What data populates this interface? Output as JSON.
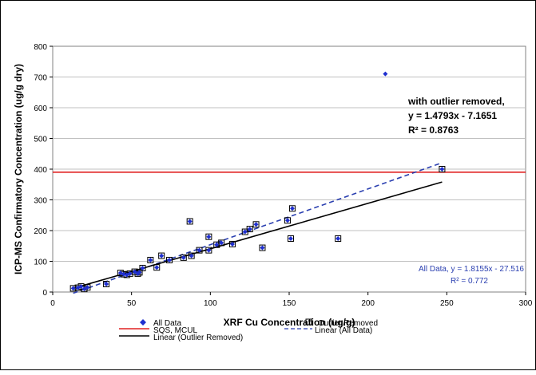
{
  "chart_data": {
    "type": "scatter",
    "title": "",
    "xlabel": "XRF Cu Concentration (ug/g)",
    "ylabel": "ICP-MS Confirmatory Concentration (ug/g dry)",
    "xlim": [
      0,
      300
    ],
    "ylim": [
      0,
      800
    ],
    "x_ticks": [
      "0",
      "50",
      "100",
      "150",
      "200",
      "250",
      "300"
    ],
    "y_ticks": [
      "0",
      "100",
      "200",
      "300",
      "400",
      "500",
      "600",
      "700",
      "800"
    ],
    "y_tick_values": [
      0,
      100,
      200,
      300,
      400,
      500,
      600,
      700,
      800
    ],
    "x_tick_values": [
      0,
      50,
      100,
      150,
      200,
      250,
      300
    ],
    "grid": "horizontal",
    "legend_position": "bottom",
    "series": [
      {
        "name": "All Data",
        "marker": "diamond",
        "color": "#1f2fcf",
        "points": [
          [
            13,
            12
          ],
          [
            16,
            14
          ],
          [
            18,
            18
          ],
          [
            20,
            10
          ],
          [
            22,
            15
          ],
          [
            34,
            26
          ],
          [
            43,
            62
          ],
          [
            45,
            58
          ],
          [
            47,
            56
          ],
          [
            49,
            60
          ],
          [
            52,
            66
          ],
          [
            54,
            60
          ],
          [
            55,
            64
          ],
          [
            57,
            78
          ],
          [
            62,
            104
          ],
          [
            66,
            80
          ],
          [
            69,
            118
          ],
          [
            74,
            104
          ],
          [
            83,
            112
          ],
          [
            87,
            230
          ],
          [
            88,
            118
          ],
          [
            93,
            136
          ],
          [
            99,
            136
          ],
          [
            99,
            180
          ],
          [
            104,
            154
          ],
          [
            107,
            160
          ],
          [
            114,
            156
          ],
          [
            122,
            196
          ],
          [
            125,
            205
          ],
          [
            129,
            220
          ],
          [
            133,
            144
          ],
          [
            149,
            233
          ],
          [
            151,
            174
          ],
          [
            152,
            272
          ],
          [
            181,
            174
          ],
          [
            211,
            710
          ],
          [
            247,
            400
          ]
        ]
      },
      {
        "name": "Outlier Removed",
        "marker": "square-open",
        "color": "#000000",
        "points": [
          [
            13,
            12
          ],
          [
            16,
            14
          ],
          [
            18,
            18
          ],
          [
            20,
            10
          ],
          [
            22,
            15
          ],
          [
            34,
            26
          ],
          [
            43,
            62
          ],
          [
            45,
            58
          ],
          [
            47,
            56
          ],
          [
            49,
            60
          ],
          [
            52,
            66
          ],
          [
            54,
            60
          ],
          [
            55,
            64
          ],
          [
            57,
            78
          ],
          [
            62,
            104
          ],
          [
            66,
            80
          ],
          [
            69,
            118
          ],
          [
            74,
            104
          ],
          [
            83,
            112
          ],
          [
            87,
            230
          ],
          [
            88,
            118
          ],
          [
            93,
            136
          ],
          [
            99,
            136
          ],
          [
            99,
            180
          ],
          [
            104,
            154
          ],
          [
            107,
            160
          ],
          [
            114,
            156
          ],
          [
            122,
            196
          ],
          [
            125,
            205
          ],
          [
            129,
            220
          ],
          [
            133,
            144
          ],
          [
            149,
            233
          ],
          [
            151,
            174
          ],
          [
            152,
            272
          ],
          [
            181,
            174
          ],
          [
            247,
            400
          ]
        ]
      }
    ],
    "lines": [
      {
        "name": "SQS, MCUL",
        "kind": "horizontal",
        "y": 390,
        "color": "#e02020",
        "dash": "solid"
      },
      {
        "name": "Linear (All Data)",
        "kind": "trend",
        "slope": 1.8155,
        "intercept": -27.516,
        "x_range": [
          13,
          247
        ],
        "color": "#2a3fb0",
        "dash": "dashed"
      },
      {
        "name": "Linear (Outlier Removed)",
        "kind": "trend",
        "slope": 1.4793,
        "intercept": -7.1651,
        "x_range": [
          13,
          247
        ],
        "color": "#000000",
        "dash": "solid"
      }
    ],
    "annotations": {
      "outlier_removed": [
        "with outlier removed,",
        "y = 1.4793x - 7.1651",
        "R² = 0.8763"
      ],
      "all_data": [
        "All Data, y = 1.8155x - 27.516",
        "R² = 0.772"
      ]
    },
    "legend": {
      "all_data": "All Data",
      "outlier_removed": "Outlier Removed",
      "sqs": "SQS, MCUL",
      "linear_all": "Linear (All Data)",
      "linear_outlier": "Linear (Outlier Removed)"
    }
  }
}
